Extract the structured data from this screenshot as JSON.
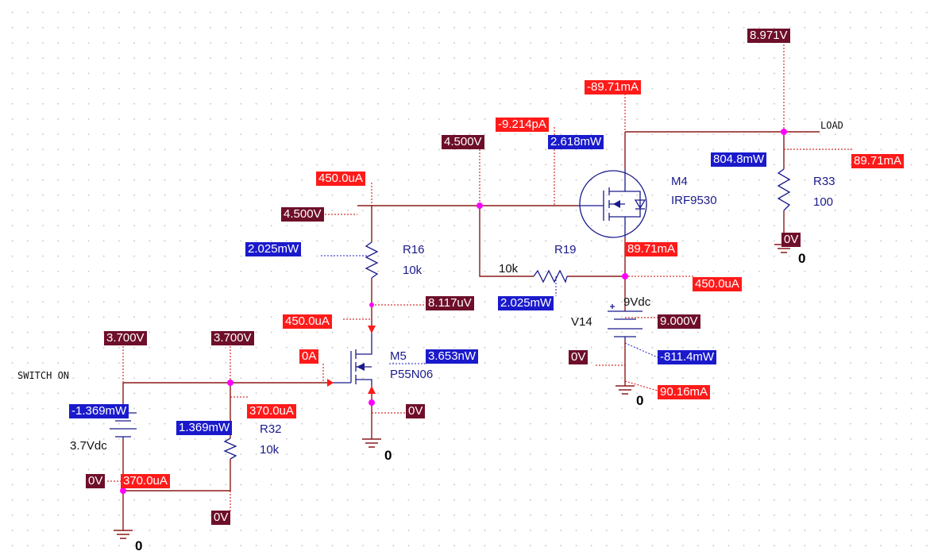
{
  "nets": {
    "switch": "SWITCH ON",
    "load": "LOAD"
  },
  "components": {
    "m4": {
      "ref": "M4",
      "part": "IRF9530"
    },
    "m5": {
      "ref": "M5",
      "part": "P55N06"
    },
    "r33": {
      "ref": "R33",
      "value": "100"
    },
    "r16": {
      "ref": "R16",
      "value": "10k"
    },
    "r19": {
      "ref": "R19",
      "value": "10k"
    },
    "r32": {
      "ref": "R32",
      "value": "10k"
    },
    "v14": {
      "ref": "V14",
      "value": "9Vdc"
    },
    "v_batt": {
      "value": "3.7Vdc"
    }
  },
  "grounds": {
    "label": "0"
  },
  "probes": {
    "top_rail_v": "8.971V",
    "m4_source_i": "-89.71mA",
    "m4_gate_i": "-9.214pA",
    "gate_node_v1": "4.500V",
    "m4_power": "2.618mW",
    "r33_power": "804.8mW",
    "r33_current": "89.71mA",
    "r16_top_i": "450.0uA",
    "gate_node_v2": "4.500V",
    "r33_bottom_v": "0V",
    "r16_power": "2.025mW",
    "m4_drain_i": "89.71mA",
    "r19_power": "2.025mW",
    "r19_current": "450.0uA",
    "m5_drain_v": "8.117uV",
    "m5_drain_i": "450.0uA",
    "v14_voltage": "9.000V",
    "switch_v1": "3.700V",
    "switch_v2": "3.700V",
    "m5_gate_i": "0A",
    "m5_power": "3.653nW",
    "v14_bottom_v": "0V",
    "v14_power": "-811.4mW",
    "v14_current": "90.16mA",
    "batt_power": "-1.369mW",
    "r32_current": "370.0uA",
    "m5_source_v": "0V",
    "r32_power": "1.369mW",
    "batt_bottom_v": "0V",
    "batt_current": "370.0uA",
    "r32_bottom_v": "0V"
  }
}
